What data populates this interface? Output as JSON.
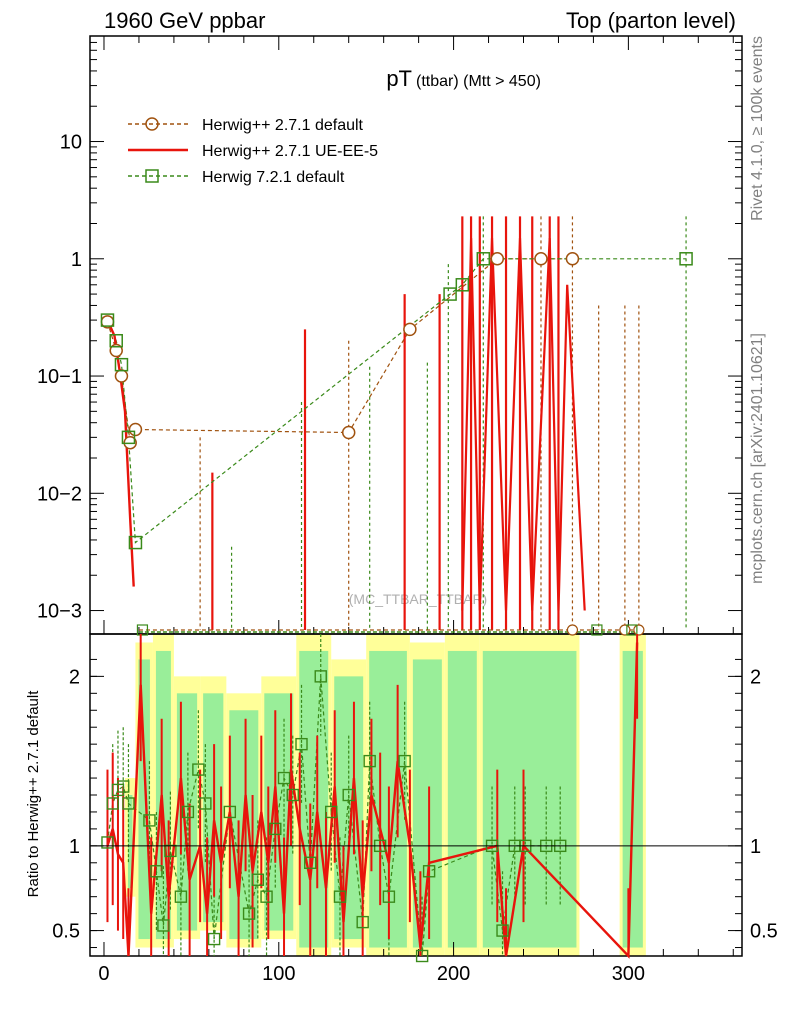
{
  "header": {
    "left": "1960 GeV ppbar",
    "right": "Top (parton level)",
    "side_rivet": "Rivet 4.1.0, ≥ 100k events",
    "side_site": "mcplots.cern.ch [arXiv:2401.10621]",
    "watermark": "(MC_TTBAR_TTBAR)"
  },
  "colors": {
    "series1": "#a0520f",
    "series2": "#e8140c",
    "series3": "#3a8a1a",
    "band_yellow": "#ffff99",
    "band_green": "#99ee99"
  },
  "chart_data": [
    {
      "type": "line",
      "panel": "main",
      "title_main": "pT",
      "title_sub": "(ttbar) (Mtt > 450)",
      "xlim": [
        -8,
        365
      ],
      "ylim_log10": [
        -3.2,
        1.9
      ],
      "yscale": "log",
      "y_ticks": [
        {
          "value": 10,
          "label": "10"
        },
        {
          "value": 1,
          "label": "1"
        },
        {
          "value": 0.1,
          "label": "10−1"
        },
        {
          "value": 0.01,
          "label": "10−2"
        },
        {
          "value": 0.001,
          "label": "10−3"
        }
      ],
      "legend": [
        {
          "label": "Herwig++ 2.7.1 default",
          "marker": "circle",
          "line": "dashed"
        },
        {
          "label": "Herwig++ 2.7.1 UE-EE-5",
          "marker": "none",
          "line": "solid"
        },
        {
          "label": "Herwig 7.2.1 default",
          "marker": "square",
          "line": "dashed"
        }
      ],
      "series": [
        {
          "name": "Herwig++ 2.7.1 default",
          "points": [
            [
              2,
              0.29
            ],
            [
              7,
              0.165
            ],
            [
              10,
              0.1
            ],
            [
              15,
              0.027
            ],
            [
              18,
              0.035
            ],
            [
              140,
              0.033
            ],
            [
              175,
              0.25
            ],
            [
              225,
              1.0
            ],
            [
              250,
              1.0
            ],
            [
              268,
              1.0
            ]
          ],
          "error_tops": [
            [
              55,
              0.03
            ],
            [
              140,
              0.2
            ],
            [
              250,
              2.3
            ],
            [
              268,
              2.3
            ],
            [
              283,
              0.4
            ],
            [
              298,
              0.4
            ],
            [
              306,
              0.4
            ]
          ]
        },
        {
          "name": "Herwig++ 2.7.1 UE-EE-5",
          "points": [
            [
              2,
              0.3
            ],
            [
              6,
              0.22
            ],
            [
              9,
              0.11
            ],
            [
              12,
              0.05
            ],
            [
              15,
              0.006
            ],
            [
              17,
              0.0016
            ],
            [
              115,
              0.037
            ],
            [
              172,
              0.06
            ],
            [
              175,
              0.18
            ]
          ],
          "spikes": [
            62,
            115,
            172,
            192,
            205,
            210,
            215,
            222,
            230,
            238,
            245,
            255,
            260
          ],
          "spike_tops": [
            0.015,
            0.25,
            0.5,
            0.5,
            2.3,
            2.3,
            2.3,
            2.3,
            2.3,
            2.3,
            2.3,
            2.3,
            2.3
          ]
        },
        {
          "name": "Herwig 7.2.1 default",
          "points": [
            [
              2,
              0.3
            ],
            [
              7,
              0.2
            ],
            [
              10,
              0.125
            ],
            [
              14,
              0.03
            ],
            [
              18,
              0.0038
            ],
            [
              198,
              0.5
            ],
            [
              205,
              0.6
            ],
            [
              217,
              1.0
            ],
            [
              333,
              1.0
            ]
          ],
          "error_tops": [
            [
              73,
              0.0035
            ],
            [
              113,
              0.06
            ],
            [
              152,
              0.12
            ],
            [
              185,
              0.13
            ],
            [
              197,
              0.9
            ],
            [
              217,
              2.3
            ],
            [
              333,
              2.3
            ]
          ]
        }
      ]
    },
    {
      "type": "line",
      "panel": "ratio",
      "ylabel": "Ratio to Herwig++ 2.7.1 default",
      "xlabel": "",
      "ylim": [
        0.35,
        2.25
      ],
      "y_ticks": [
        {
          "value": 2,
          "label": "2"
        },
        {
          "value": 1,
          "label": "1"
        },
        {
          "value": 0.5,
          "label": "0.5"
        }
      ],
      "x_ticks": [
        {
          "value": 0,
          "label": "0"
        },
        {
          "value": 100,
          "label": "100"
        },
        {
          "value": 200,
          "label": "200"
        },
        {
          "value": 300,
          "label": "300"
        }
      ],
      "series": [
        {
          "name": "Herwig++ 2.7.1 UE-EE-5",
          "x": [
            2,
            5,
            8,
            11,
            14,
            21,
            27,
            33,
            37,
            44,
            49,
            55,
            59,
            63,
            67,
            72,
            77,
            81,
            85,
            90,
            94,
            98,
            103,
            107,
            112,
            118,
            122,
            127,
            132,
            137,
            143,
            148,
            153,
            158,
            163,
            168,
            175,
            181,
            186,
            225,
            230,
            240,
            300,
            305
          ],
          "y": [
            1.0,
            1.1,
            0.95,
            0.9,
            0.3,
            1.95,
            0.6,
            1.3,
            0.7,
            1.4,
            0.8,
            1.0,
            0.6,
            1.15,
            0.9,
            1.2,
            0.7,
            1.3,
            0.85,
            1.2,
            0.9,
            1.35,
            0.6,
            1.45,
            1.1,
            0.8,
            1.2,
            0.75,
            1.35,
            0.55,
            1.4,
            0.7,
            1.3,
            1.1,
            0.9,
            1.5,
            1.0,
            0.4,
            0.9,
            1.0,
            0.3,
            1.0,
            0.3,
            2.2
          ]
        },
        {
          "name": "Herwig 7.2.1 default",
          "x": [
            2,
            5,
            8,
            11,
            14,
            26,
            30,
            34,
            38,
            44,
            48,
            54,
            58,
            63,
            72,
            83,
            88,
            93,
            98,
            103,
            108,
            113,
            118,
            124,
            130,
            135,
            140,
            148,
            152,
            158,
            163,
            172,
            182,
            186,
            222,
            228,
            235,
            241,
            253,
            261
          ],
          "y": [
            1.02,
            1.25,
            1.33,
            1.35,
            1.25,
            1.15,
            0.85,
            0.53,
            0.97,
            0.7,
            1.2,
            1.45,
            1.25,
            0.45,
            1.2,
            0.6,
            0.8,
            0.7,
            1.1,
            1.4,
            1.3,
            1.6,
            0.9,
            2.0,
            1.2,
            0.7,
            1.3,
            0.55,
            1.5,
            1.0,
            0.7,
            1.5,
            0.35,
            0.85,
            1.0,
            0.5,
            1.0,
            1.0,
            1.0,
            1.0
          ]
        }
      ]
    }
  ]
}
